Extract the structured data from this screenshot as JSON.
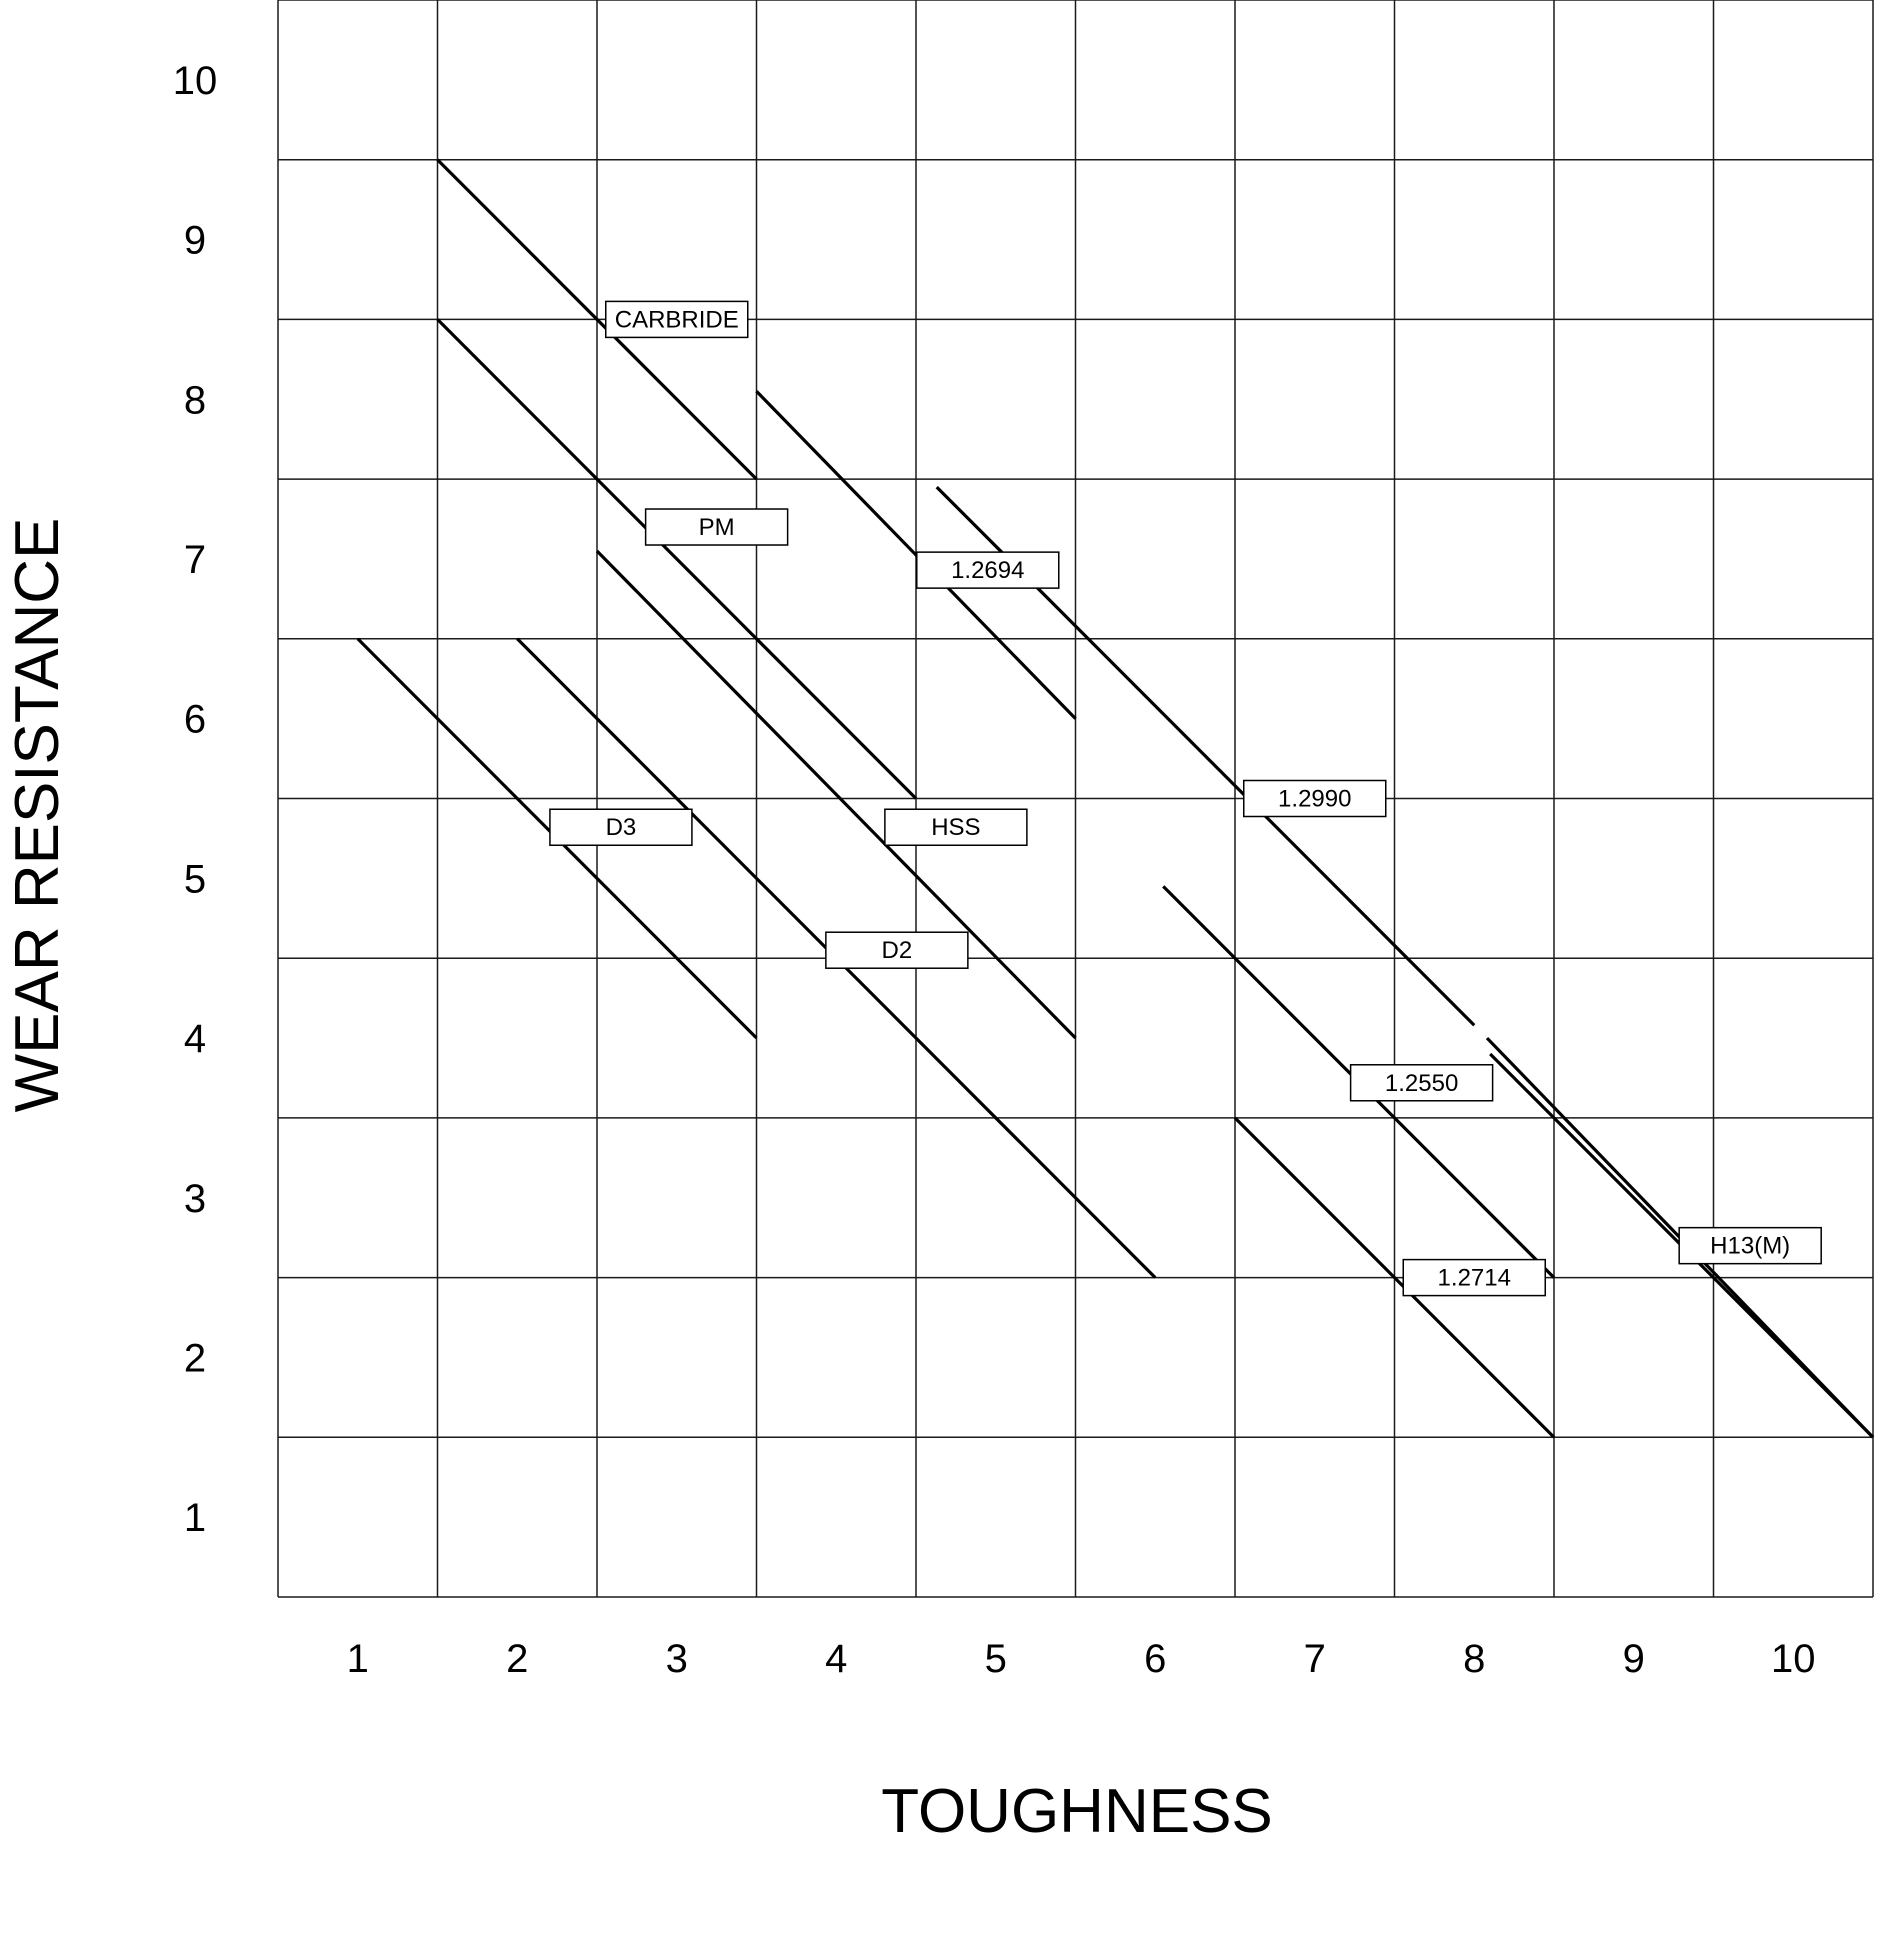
{
  "chart_data": {
    "type": "line",
    "xlabel": "TOUGHNESS",
    "ylabel": "WEAR RESISTANCE",
    "xlim": [
      0.5,
      10.5
    ],
    "ylim": [
      0.5,
      10.5
    ],
    "x_ticks": [
      "1",
      "2",
      "3",
      "4",
      "5",
      "6",
      "7",
      "8",
      "9",
      "10"
    ],
    "y_ticks": [
      "1",
      "2",
      "3",
      "4",
      "5",
      "6",
      "7",
      "8",
      "9",
      "10"
    ],
    "grid": true,
    "series": [
      {
        "name": "CARBRIDE",
        "x": [
          1.5,
          3.5
        ],
        "y": [
          9.5,
          7.5
        ],
        "label_at": [
          3.0,
          8.5
        ]
      },
      {
        "name": "PM",
        "x": [
          1.5,
          4.5
        ],
        "y": [
          8.5,
          5.5
        ],
        "label_at": [
          3.25,
          7.2
        ]
      },
      {
        "name": "1.2694",
        "x": [
          3.5,
          5.5
        ],
        "y": [
          8.05,
          6.0
        ],
        "label_at": [
          4.95,
          6.93
        ]
      },
      {
        "name": "1.2990",
        "x": [
          4.63,
          10.5
        ],
        "y": [
          7.45,
          1.5
        ],
        "label_at": [
          7.0,
          5.5
        ]
      },
      {
        "name": "HSS",
        "x": [
          2.5,
          5.5
        ],
        "y": [
          7.05,
          4.0
        ],
        "label_at": [
          4.75,
          5.32
        ]
      },
      {
        "name": "D3",
        "x": [
          1.0,
          3.5
        ],
        "y": [
          6.5,
          4.0
        ],
        "label_at": [
          2.65,
          5.32
        ]
      },
      {
        "name": "D2",
        "x": [
          2.0,
          6.0
        ],
        "y": [
          6.5,
          2.5
        ],
        "label_at": [
          4.38,
          4.55
        ]
      },
      {
        "name": "1.2550",
        "x": [
          6.05,
          8.5
        ],
        "y": [
          4.95,
          2.5
        ],
        "label_at": [
          7.67,
          3.72
        ]
      },
      {
        "name": "1.2714",
        "x": [
          6.5,
          8.5
        ],
        "y": [
          3.5,
          1.5
        ],
        "label_at": [
          8.0,
          2.5
        ]
      },
      {
        "name": "H13(M)",
        "x": [
          8.1,
          10.5
        ],
        "y": [
          3.9,
          1.5
        ],
        "label_at": [
          9.73,
          2.7
        ]
      }
    ]
  }
}
